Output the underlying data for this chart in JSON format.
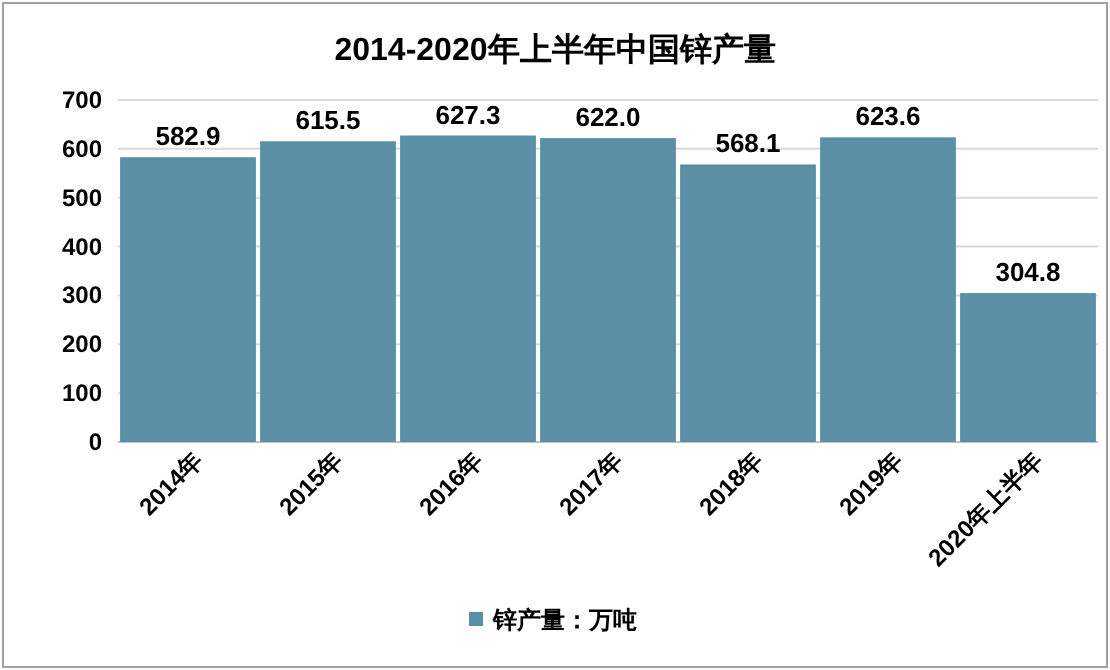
{
  "chart_data": {
    "type": "bar",
    "title": "2014-2020年上半年中国锌产量",
    "categories": [
      "2014年",
      "2015年",
      "2016年",
      "2017年",
      "2018年",
      "2019年",
      "2020年上半年"
    ],
    "series": [
      {
        "name": "锌产量：万吨",
        "color": "#5b8fa6",
        "values": [
          582.9,
          615.5,
          627.3,
          622.0,
          568.1,
          623.6,
          304.8
        ]
      }
    ],
    "value_labels": [
      "582.9",
      "615.5",
      "627.3",
      "622.0",
      "568.1",
      "623.6",
      "304.8"
    ],
    "ylim": [
      0,
      700
    ],
    "yticks": [
      0,
      100,
      200,
      300,
      400,
      500,
      600,
      700
    ],
    "grid": "y",
    "legend": "bottom"
  }
}
